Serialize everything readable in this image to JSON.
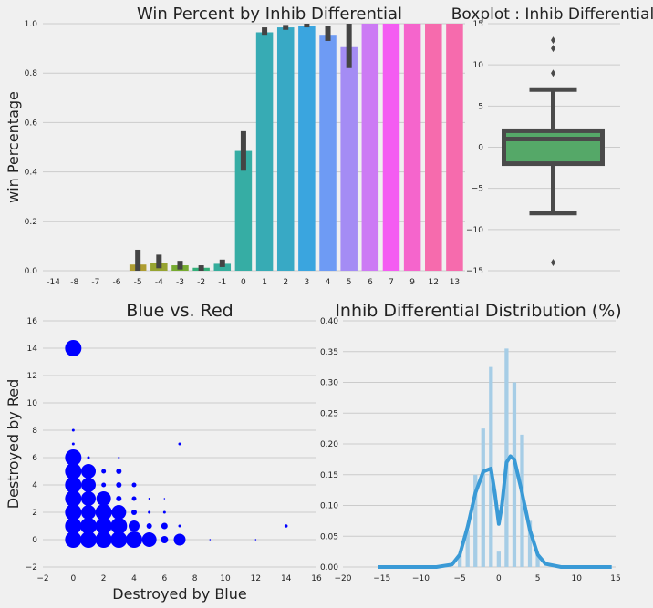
{
  "chart_data": [
    {
      "id": "bar",
      "type": "bar",
      "title": "Win Percent by Inhib Differential",
      "ylabel": "win Percentage",
      "xlabel": "",
      "ylim": [
        0,
        1.0
      ],
      "yticks": [
        "0.0",
        "0.2",
        "0.4",
        "0.6",
        "0.8",
        "1.0"
      ],
      "grid": true,
      "categories": [
        "-14",
        "-8",
        "-7",
        "-6",
        "-5",
        "-4",
        "-3",
        "-2",
        "-1",
        "0",
        "1",
        "2",
        "3",
        "4",
        "5",
        "6",
        "7",
        "9",
        "12",
        "13"
      ],
      "values": [
        0,
        0,
        0,
        0,
        0.025,
        0.03,
        0.022,
        0.012,
        0.028,
        0.485,
        0.965,
        0.985,
        0.99,
        0.955,
        0.905,
        1.0,
        1.0,
        1.0,
        1.0,
        1.0
      ],
      "ci_low": [
        0,
        0,
        0,
        0,
        0.0,
        0.01,
        0.005,
        0.0,
        0.015,
        0.405,
        0.955,
        0.975,
        0.985,
        0.93,
        0.82,
        1.0,
        1.0,
        1.0,
        1.0,
        1.0
      ],
      "ci_high": [
        0,
        0,
        0,
        0,
        0.085,
        0.065,
        0.04,
        0.022,
        0.045,
        0.565,
        0.985,
        0.995,
        1.0,
        0.99,
        1.0,
        1.0,
        1.0,
        1.0,
        1.0,
        1.0
      ],
      "colors": [
        "#f77189",
        "#f7754f",
        "#dc8932",
        "#c39532",
        "#ae9d31",
        "#97a431",
        "#77ab31",
        "#33b07a",
        "#35ad9c",
        "#36ada4",
        "#37abb4",
        "#38a9c5",
        "#3aa5df",
        "#6e9bf4",
        "#a48cf4",
        "#cc7af4",
        "#f45cf2",
        "#f565cc",
        "#f66bad",
        "#f66bad"
      ]
    },
    {
      "id": "box",
      "type": "boxplot",
      "title": "Boxplot : Inhib Differential",
      "ylim": [
        -15,
        15
      ],
      "yticks": [
        "−15",
        "−10",
        "−5",
        "0",
        "5",
        "10",
        "15"
      ],
      "grid": true,
      "q1": -2,
      "median": 1,
      "q3": 2,
      "whisker_low": -8,
      "whisker_high": 7,
      "outliers": [
        9,
        12,
        13,
        -14
      ],
      "color": "#55a868"
    },
    {
      "id": "scatter",
      "type": "scatter",
      "title": "Blue vs. Red",
      "xlabel": "Destroyed by Blue",
      "ylabel": "Destroyed by Red",
      "xlim": [
        -2,
        16
      ],
      "ylim": [
        -2,
        16
      ],
      "xticks": [
        "−2",
        "0",
        "2",
        "4",
        "6",
        "8",
        "10",
        "12",
        "14",
        "16"
      ],
      "yticks": [
        "−2",
        "0",
        "2",
        "4",
        "6",
        "8",
        "10",
        "12",
        "14",
        "16"
      ],
      "grid": true,
      "color": "#0000ff",
      "points": [
        [
          0,
          14,
          9
        ],
        [
          0,
          8,
          1.5
        ],
        [
          0,
          7,
          1.5
        ],
        [
          0,
          6,
          9
        ],
        [
          0,
          5,
          9
        ],
        [
          0,
          4,
          9
        ],
        [
          0,
          3,
          9
        ],
        [
          0,
          2,
          9
        ],
        [
          0,
          1,
          9
        ],
        [
          0,
          0,
          9
        ],
        [
          1,
          6,
          1.5
        ],
        [
          1,
          5,
          8
        ],
        [
          1,
          4,
          8
        ],
        [
          1,
          3,
          8
        ],
        [
          1,
          2,
          8
        ],
        [
          1,
          1,
          9
        ],
        [
          1,
          0,
          9
        ],
        [
          2,
          5,
          2.5
        ],
        [
          2,
          4,
          2.5
        ],
        [
          2,
          3,
          8
        ],
        [
          2,
          2,
          9
        ],
        [
          2,
          1,
          9
        ],
        [
          2,
          0,
          9
        ],
        [
          3,
          6,
          1
        ],
        [
          3,
          5,
          3
        ],
        [
          3,
          4,
          3
        ],
        [
          3,
          3,
          3
        ],
        [
          3,
          2,
          8
        ],
        [
          3,
          1,
          9
        ],
        [
          3,
          0,
          9
        ],
        [
          4,
          4,
          2.5
        ],
        [
          4,
          3,
          2.5
        ],
        [
          4,
          2,
          3
        ],
        [
          4,
          1,
          6
        ],
        [
          4,
          0,
          9
        ],
        [
          5,
          3,
          1
        ],
        [
          5,
          2,
          1.5
        ],
        [
          5,
          1,
          3
        ],
        [
          5,
          0,
          8
        ],
        [
          6,
          3,
          0.8
        ],
        [
          6,
          2,
          1.5
        ],
        [
          6,
          1,
          3.5
        ],
        [
          6,
          0,
          4
        ],
        [
          7,
          7,
          1.5
        ],
        [
          7,
          1,
          1.5
        ],
        [
          7,
          0,
          6.5
        ],
        [
          9,
          0,
          0.8
        ],
        [
          12,
          0,
          0.8
        ],
        [
          14,
          1,
          1.8
        ]
      ]
    },
    {
      "id": "dist",
      "type": "histogram",
      "title": "Inhib Differential Distribution (%)",
      "xlim": [
        -20,
        15
      ],
      "ylim": [
        0,
        0.4
      ],
      "xticks": [
        "−20",
        "−15",
        "−10",
        "−5",
        "0",
        "5",
        "10",
        "15"
      ],
      "yticks": [
        "0.00",
        "0.05",
        "0.10",
        "0.15",
        "0.20",
        "0.25",
        "0.30",
        "0.35",
        "0.40"
      ],
      "grid": true,
      "bar_color": "#a6cde6",
      "line_color": "#3a9ad6",
      "bins": [
        [
          -5,
          0.02
        ],
        [
          -4,
          0.06
        ],
        [
          -3,
          0.15
        ],
        [
          -2,
          0.225
        ],
        [
          -1,
          0.325
        ],
        [
          0,
          0.025
        ],
        [
          1,
          0.355
        ],
        [
          2,
          0.3
        ],
        [
          3,
          0.215
        ],
        [
          4,
          0.075
        ],
        [
          5,
          0.02
        ]
      ],
      "kde": [
        [
          -15.5,
          0.0
        ],
        [
          -8,
          0.0
        ],
        [
          -6,
          0.004
        ],
        [
          -5,
          0.02
        ],
        [
          -4,
          0.065
        ],
        [
          -3,
          0.12
        ],
        [
          -2,
          0.155
        ],
        [
          -1,
          0.16
        ],
        [
          -0.5,
          0.12
        ],
        [
          0,
          0.07
        ],
        [
          0.4,
          0.1
        ],
        [
          1,
          0.17
        ],
        [
          1.5,
          0.18
        ],
        [
          2,
          0.175
        ],
        [
          3,
          0.12
        ],
        [
          4,
          0.06
        ],
        [
          5,
          0.02
        ],
        [
          6,
          0.005
        ],
        [
          8,
          0.0
        ],
        [
          14.5,
          0.0
        ]
      ]
    }
  ]
}
